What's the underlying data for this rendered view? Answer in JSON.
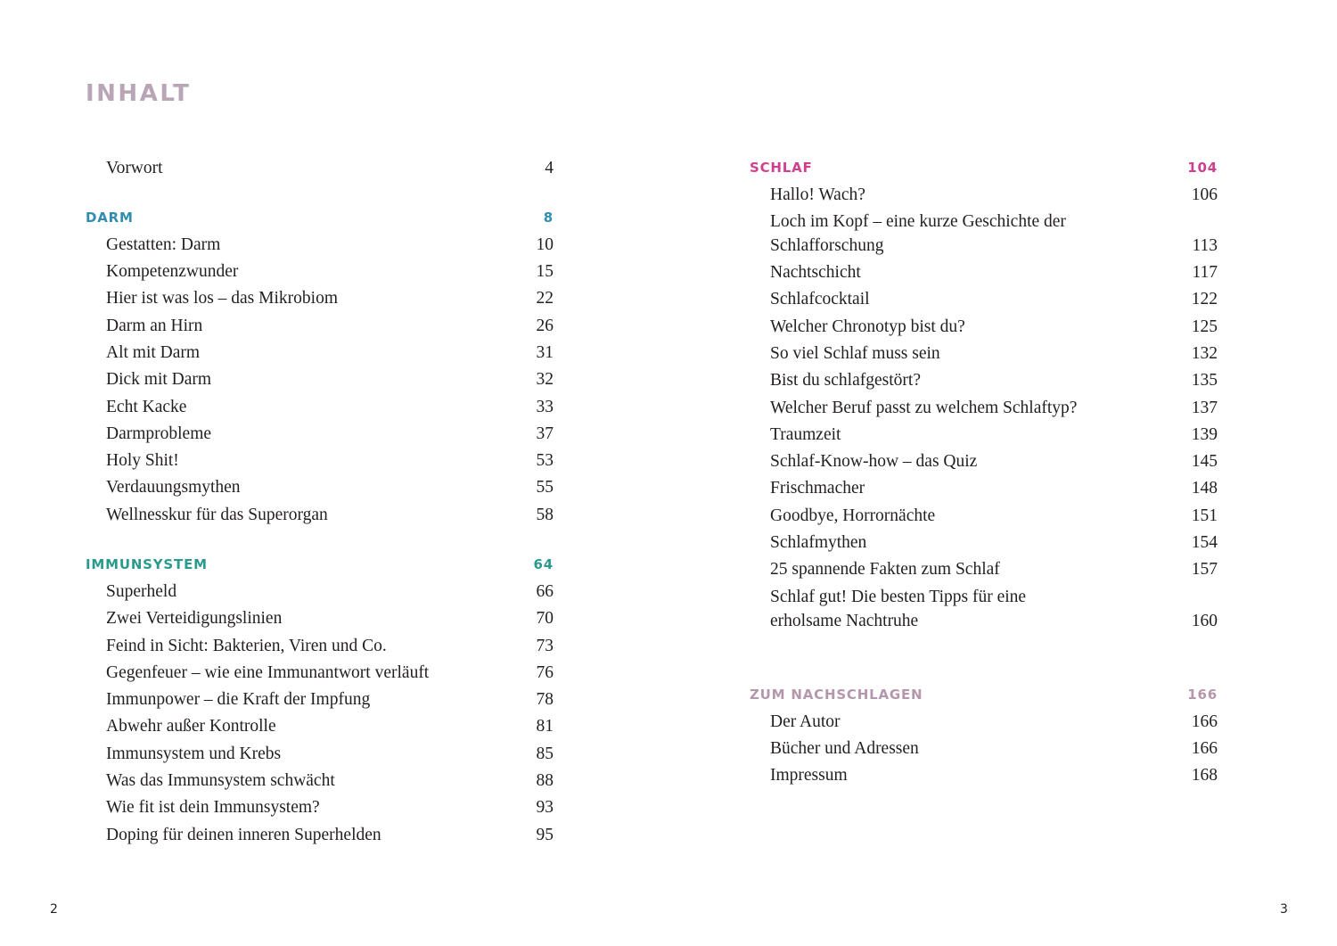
{
  "title": "INHALT",
  "colors": {
    "title": "#b9a5b5",
    "darm": "#2f8db0",
    "immunsystem": "#2a9a8c",
    "schlaf": "#d03f8e",
    "nachschlagen": "#b597ad"
  },
  "columns": [
    {
      "blocks": [
        {
          "heading": null,
          "entries": [
            {
              "label": "Vorwort",
              "page": "4"
            }
          ]
        },
        {
          "heading": "DARM",
          "page": "8",
          "color_key": "darm",
          "entries": [
            {
              "label": "Gestatten: Darm",
              "page": "10"
            },
            {
              "label": "Kompetenzwunder",
              "page": "15"
            },
            {
              "label": "Hier ist was los – das Mikrobiom",
              "page": "22"
            },
            {
              "label": "Darm an Hirn",
              "page": "26"
            },
            {
              "label": "Alt mit Darm",
              "page": "31"
            },
            {
              "label": "Dick mit Darm",
              "page": "32"
            },
            {
              "label": "Echt Kacke",
              "page": "33"
            },
            {
              "label": "Darmprobleme",
              "page": "37"
            },
            {
              "label": "Holy Shit!",
              "page": "53"
            },
            {
              "label": "Verdauungsmythen",
              "page": "55"
            },
            {
              "label": "Wellnesskur für das Superorgan",
              "page": "58"
            }
          ]
        },
        {
          "heading": "IMMUNSYSTEM",
          "page": "64",
          "color_key": "immunsystem",
          "entries": [
            {
              "label": "Superheld",
              "page": "66"
            },
            {
              "label": "Zwei Verteidigungslinien",
              "page": "70"
            },
            {
              "label": "Feind in Sicht: Bakterien, Viren und Co.",
              "page": "73"
            },
            {
              "label": "Gegenfeuer – wie eine Immunantwort verläuft",
              "page": "76"
            },
            {
              "label": "Immunpower – die Kraft der Impfung",
              "page": "78"
            },
            {
              "label": "Abwehr außer Kontrolle",
              "page": "81"
            },
            {
              "label": "Immunsystem und Krebs",
              "page": "85"
            },
            {
              "label": "Was das Immunsystem schwächt",
              "page": "88"
            },
            {
              "label": "Wie fit ist dein Immunsystem?",
              "page": "93"
            },
            {
              "label": "Doping für deinen inneren Superhelden",
              "page": "95"
            }
          ]
        }
      ]
    },
    {
      "blocks": [
        {
          "heading": "SCHLAF",
          "page": "104",
          "color_key": "schlaf",
          "entries": [
            {
              "label": "Hallo! Wach?",
              "page": "106"
            },
            {
              "label": "Loch im Kopf – eine kurze Geschichte der Schlafforschung",
              "page": "113"
            },
            {
              "label": "Nachtschicht",
              "page": "117"
            },
            {
              "label": "Schlafcocktail",
              "page": "122"
            },
            {
              "label": "Welcher Chronotyp bist du?",
              "page": "125"
            },
            {
              "label": "So viel Schlaf muss sein",
              "page": "132"
            },
            {
              "label": "Bist du schlafgestört?",
              "page": "135"
            },
            {
              "label": "Welcher Beruf passt zu welchem Schlaftyp?",
              "page": "137"
            },
            {
              "label": "Traumzeit",
              "page": "139"
            },
            {
              "label": "Schlaf-Know-how – das Quiz",
              "page": "145"
            },
            {
              "label": "Frischmacher",
              "page": "148"
            },
            {
              "label": "Goodbye, Horrornächte",
              "page": "151"
            },
            {
              "label": "Schlafmythen",
              "page": "154"
            },
            {
              "label": "25 spannende Fakten zum Schlaf",
              "page": "157"
            },
            {
              "label": "Schlaf gut! Die besten Tipps für eine erholsame Nachtruhe",
              "page": "160"
            }
          ]
        },
        {
          "heading": "ZUM NACHSCHLAGEN",
          "page": "166",
          "color_key": "nachschlagen",
          "far": true,
          "entries": [
            {
              "label": "Der Autor",
              "page": "166"
            },
            {
              "label": "Bücher und Adressen",
              "page": "166"
            },
            {
              "label": "Impressum",
              "page": "168"
            }
          ]
        }
      ]
    }
  ],
  "folios": {
    "left": "2",
    "right": "3"
  }
}
